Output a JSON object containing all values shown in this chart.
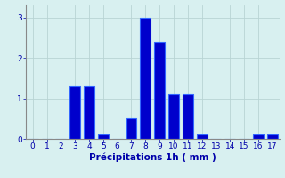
{
  "categories": [
    0,
    1,
    2,
    3,
    4,
    5,
    6,
    7,
    8,
    9,
    10,
    11,
    12,
    13,
    14,
    15,
    16,
    17
  ],
  "values": [
    0,
    0,
    0,
    1.3,
    1.3,
    0.1,
    0,
    0.5,
    3.0,
    2.4,
    1.1,
    1.1,
    0.1,
    0,
    0,
    0,
    0.1,
    0.1
  ],
  "bar_color": "#0000cc",
  "bar_edge_color": "#3366ff",
  "background_color": "#d8f0f0",
  "grid_color": "#b8d4d4",
  "xlabel": "Précipitations 1h ( mm )",
  "ylim": [
    0,
    3.3
  ],
  "yticks": [
    0,
    1,
    2,
    3
  ],
  "xlim": [
    -0.5,
    17.5
  ],
  "xlabel_color": "#0000aa",
  "tick_color": "#0000aa",
  "xlabel_fontsize": 7.5,
  "tick_fontsize": 6.5
}
